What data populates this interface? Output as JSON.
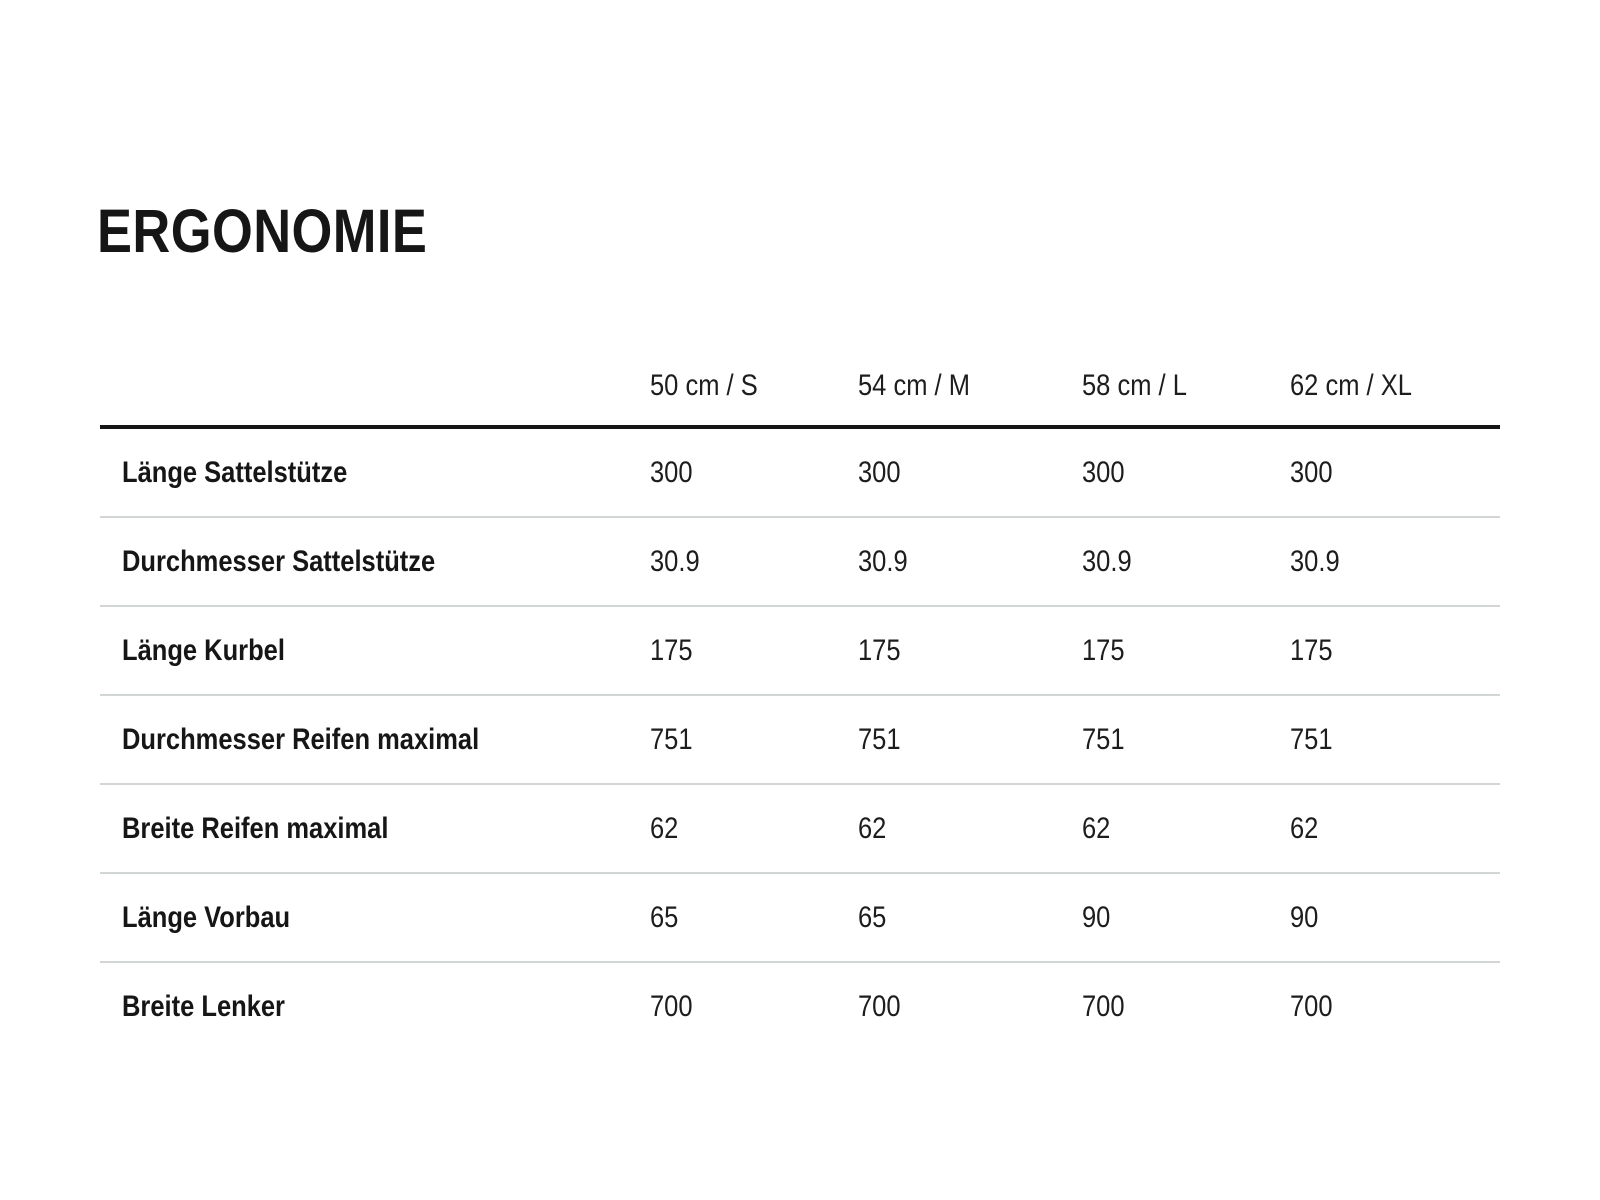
{
  "page": {
    "title": "ERGONOMIE"
  },
  "table": {
    "size_headers": [
      "50 cm / S",
      "54 cm / M",
      "58 cm / L",
      "62 cm / XL"
    ],
    "rows": [
      {
        "label": "Länge Sattelstütze",
        "values": [
          "300",
          "300",
          "300",
          "300"
        ]
      },
      {
        "label": "Durchmesser Sattelstütze",
        "values": [
          "30.9",
          "30.9",
          "30.9",
          "30.9"
        ]
      },
      {
        "label": "Länge Kurbel",
        "values": [
          "175",
          "175",
          "175",
          "175"
        ]
      },
      {
        "label": "Durchmesser Reifen maximal",
        "values": [
          "751",
          "751",
          "751",
          "751"
        ]
      },
      {
        "label": "Breite Reifen maximal",
        "values": [
          "62",
          "62",
          "62",
          "62"
        ]
      },
      {
        "label": "Länge Vorbau",
        "values": [
          "65",
          "65",
          "90",
          "90"
        ]
      },
      {
        "label": "Breite Lenker",
        "values": [
          "700",
          "700",
          "700",
          "700"
        ]
      }
    ],
    "colors": {
      "text": "#1d1d1d",
      "header_rule": "#161616",
      "row_divider": "#d3d6d6"
    }
  }
}
